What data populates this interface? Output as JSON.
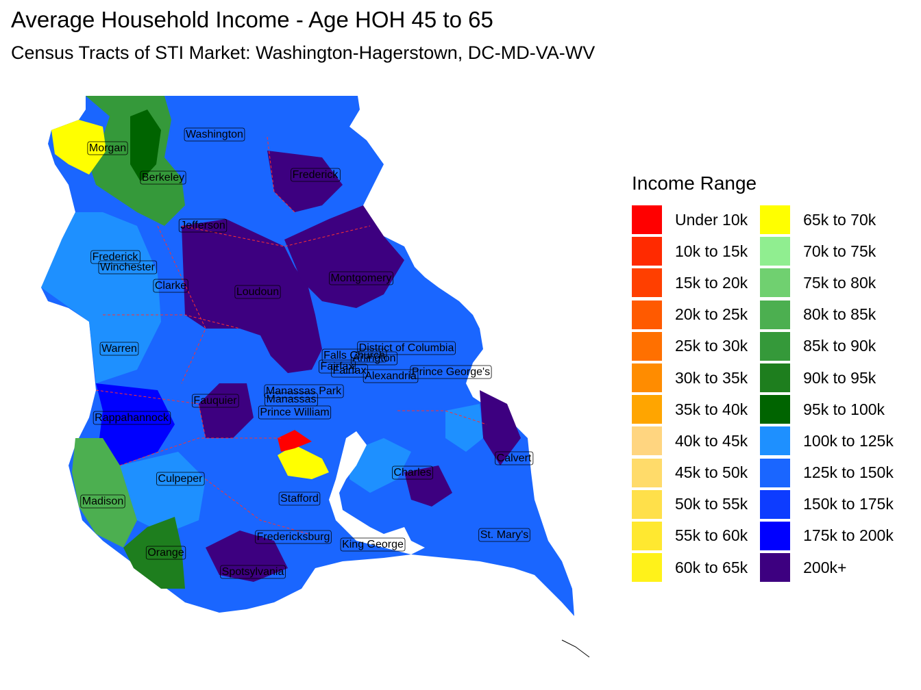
{
  "title": "Average Household Income - Age HOH 45 to 65",
  "subtitle": "Census Tracts of STI Market: Washington-Hagerstown, DC-MD-VA-WV",
  "legend": {
    "title": "Income Range",
    "items": [
      {
        "label": "Under 10k",
        "color": "#ff0000"
      },
      {
        "label": "10k to 15k",
        "color": "#ff2a00"
      },
      {
        "label": "15k to 20k",
        "color": "#ff3f00"
      },
      {
        "label": "20k to 25k",
        "color": "#ff5a00"
      },
      {
        "label": "25k to 30k",
        "color": "#ff7000"
      },
      {
        "label": "30k to 35k",
        "color": "#ff8c00"
      },
      {
        "label": "35k to 40k",
        "color": "#ffa500"
      },
      {
        "label": "40k to 45k",
        "color": "#ffd580"
      },
      {
        "label": "45k to 50k",
        "color": "#ffdb6a"
      },
      {
        "label": "50k to 55k",
        "color": "#ffe04a"
      },
      {
        "label": "55k to 60k",
        "color": "#ffe830"
      },
      {
        "label": "60k to 65k",
        "color": "#fff21a"
      },
      {
        "label": "65k to 70k",
        "color": "#ffff00"
      },
      {
        "label": "70k to 75k",
        "color": "#90ee90"
      },
      {
        "label": "75k to 80k",
        "color": "#70d070"
      },
      {
        "label": "80k to 85k",
        "color": "#4caf50"
      },
      {
        "label": "85k to 90k",
        "color": "#35993a"
      },
      {
        "label": "90k to 95k",
        "color": "#1e7e1e"
      },
      {
        "label": "95k to 100k",
        "color": "#006400"
      },
      {
        "label": "100k to 125k",
        "color": "#1e90ff"
      },
      {
        "label": "125k to 150k",
        "color": "#1a66ff"
      },
      {
        "label": "150k to 175k",
        "color": "#0d3cff"
      },
      {
        "label": "175k to 200k",
        "color": "#0000ff"
      },
      {
        "label": "200k+",
        "color": "#3d0080"
      }
    ]
  },
  "counties": [
    "Washington",
    "Morgan",
    "Berkeley",
    "Frederick",
    "Jefferson",
    "Frederick",
    "Winchester",
    "Clarke",
    "Loudoun",
    "Montgomery",
    "Warren",
    "District of Columbia",
    "Falls Church",
    "Arlington",
    "Fairfax",
    "Fairfax",
    "Alexandria",
    "Prince George's",
    "Manassas Park",
    "Manassas",
    "Prince William",
    "Fauquier",
    "Rappahannock",
    "Calvert",
    "Charles",
    "Culpeper",
    "Madison",
    "Stafford",
    "Fredericksburg",
    "King George",
    "St. Mary's",
    "Orange",
    "Spotsylvania"
  ]
}
